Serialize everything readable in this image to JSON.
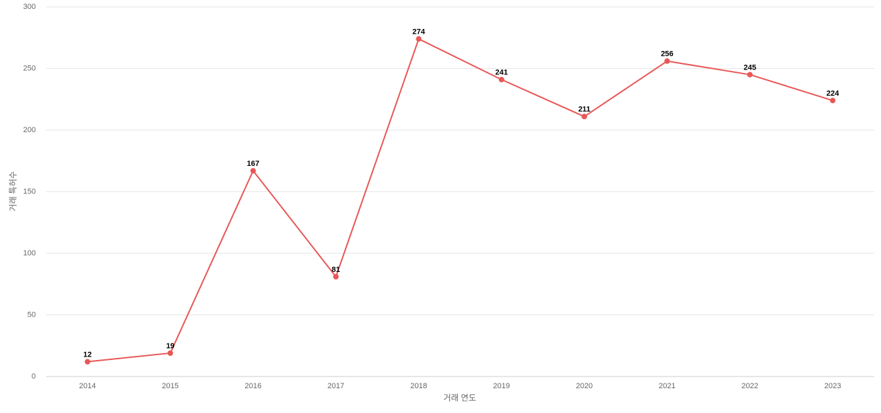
{
  "chart_data": {
    "type": "line",
    "x_label": "거래 연도",
    "y_label": "거래 특허수",
    "categories": [
      "2014",
      "2015",
      "2016",
      "2017",
      "2018",
      "2019",
      "2020",
      "2021",
      "2022",
      "2023"
    ],
    "series": [
      {
        "name": "거래 특허수",
        "color": "#e85757",
        "values": [
          12,
          19,
          167,
          81,
          274,
          241,
          211,
          256,
          245,
          224
        ]
      }
    ],
    "ylim": [
      0,
      300
    ],
    "yticks": [
      0,
      50,
      100,
      150,
      200,
      250,
      300
    ],
    "grid": true
  }
}
